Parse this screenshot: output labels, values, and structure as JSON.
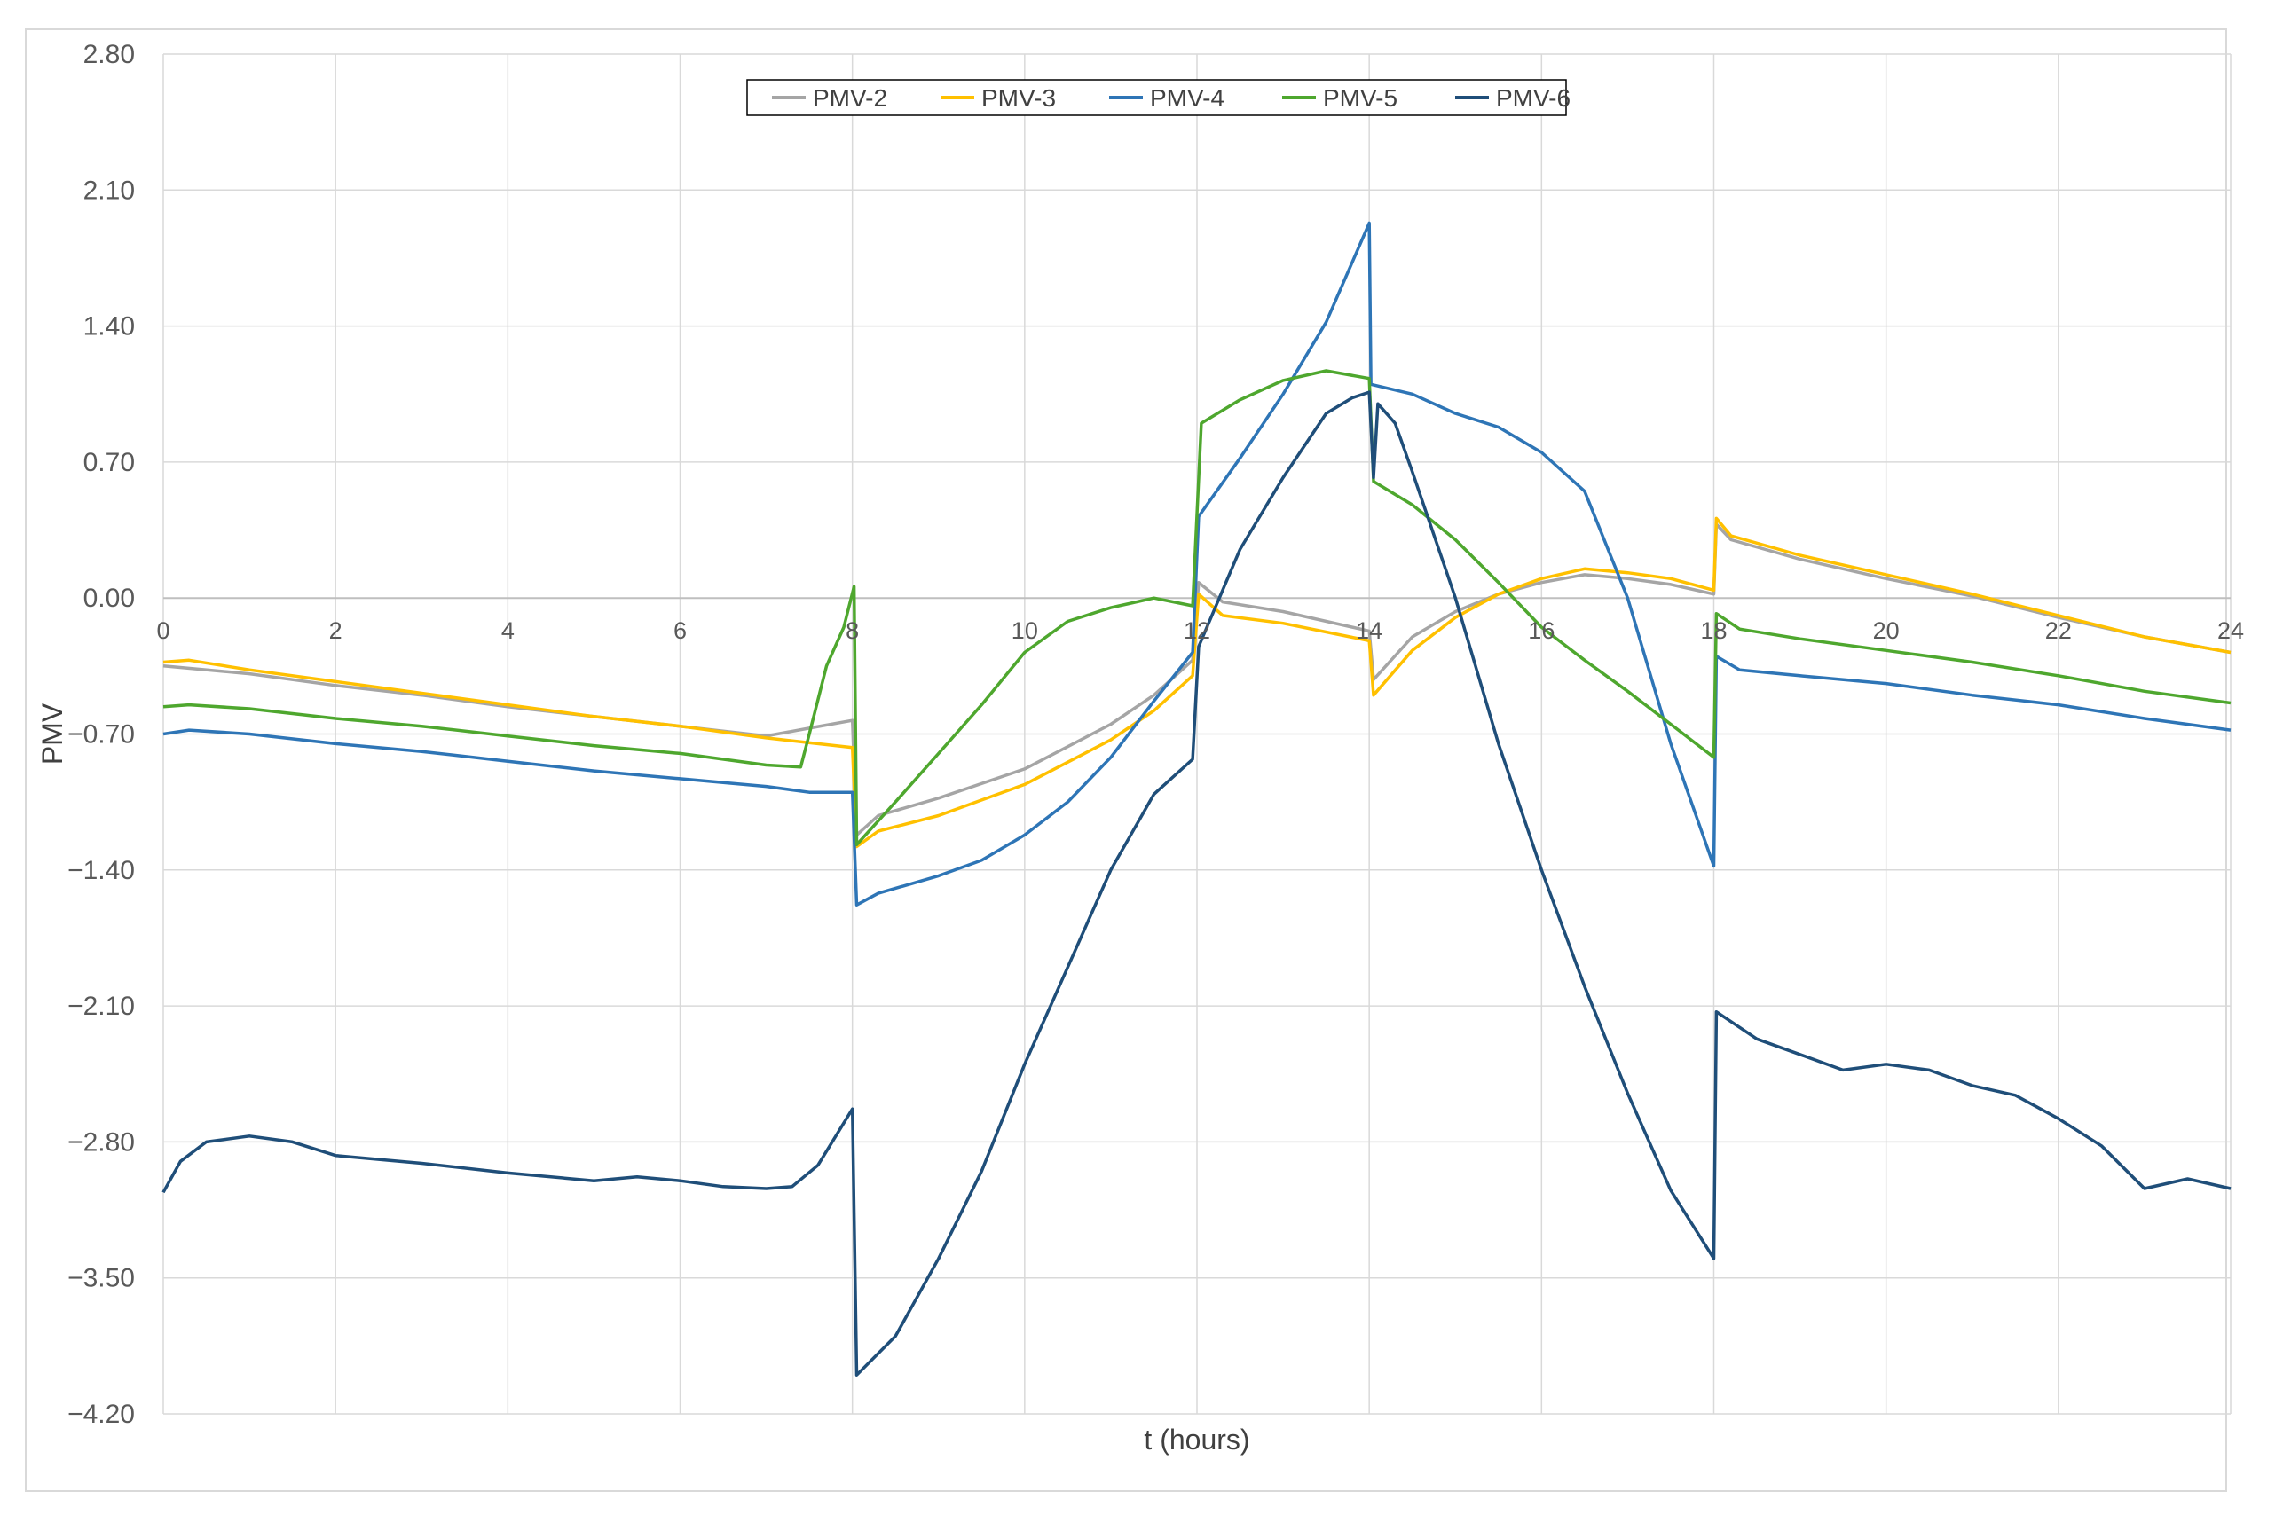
{
  "chart_data": {
    "type": "line",
    "title": "",
    "xlabel": "t (hours)",
    "ylabel": "PMV",
    "xlim": [
      0,
      24
    ],
    "ylim": [
      -4.2,
      2.8
    ],
    "x_ticks": [
      "0",
      "2",
      "4",
      "6",
      "8",
      "10",
      "12",
      "14",
      "16",
      "18",
      "20",
      "22",
      "24"
    ],
    "y_ticks": [
      "2.80",
      "2.10",
      "1.40",
      "0.70",
      "0.00",
      "-0.70",
      "-1.40",
      "-2.10",
      "-2.80",
      "-3.50",
      "-4.20"
    ],
    "grid": true,
    "legend_position": "top-center",
    "series": [
      {
        "name": "PMV-2",
        "color": "#a5a5a5",
        "points": [
          [
            0,
            -0.35
          ],
          [
            1,
            -0.39
          ],
          [
            2,
            -0.45
          ],
          [
            3,
            -0.5
          ],
          [
            4,
            -0.56
          ],
          [
            5,
            -0.61
          ],
          [
            6,
            -0.66
          ],
          [
            7,
            -0.71
          ],
          [
            7.5,
            -0.67
          ],
          [
            8,
            -0.63
          ],
          [
            8.05,
            -1.22
          ],
          [
            8.3,
            -1.12
          ],
          [
            9,
            -1.03
          ],
          [
            10,
            -0.88
          ],
          [
            11,
            -0.65
          ],
          [
            11.5,
            -0.5
          ],
          [
            11.95,
            -0.32
          ],
          [
            12.02,
            0.08
          ],
          [
            12.3,
            -0.02
          ],
          [
            13,
            -0.07
          ],
          [
            14,
            -0.17
          ],
          [
            14.05,
            -0.42
          ],
          [
            14.5,
            -0.2
          ],
          [
            15,
            -0.07
          ],
          [
            15.5,
            0.02
          ],
          [
            16,
            0.08
          ],
          [
            16.5,
            0.12
          ],
          [
            17,
            0.1
          ],
          [
            17.5,
            0.07
          ],
          [
            18,
            0.02
          ],
          [
            18.03,
            0.38
          ],
          [
            18.2,
            0.3
          ],
          [
            19,
            0.2
          ],
          [
            20,
            0.1
          ],
          [
            21,
            0.01
          ],
          [
            22,
            -0.1
          ],
          [
            23,
            -0.2
          ],
          [
            24,
            -0.28
          ]
        ]
      },
      {
        "name": "PMV-3",
        "color": "#ffc000",
        "points": [
          [
            0,
            -0.33
          ],
          [
            0.3,
            -0.32
          ],
          [
            1,
            -0.37
          ],
          [
            2,
            -0.43
          ],
          [
            3,
            -0.49
          ],
          [
            4,
            -0.55
          ],
          [
            5,
            -0.61
          ],
          [
            6,
            -0.66
          ],
          [
            7,
            -0.72
          ],
          [
            8,
            -0.77
          ],
          [
            8.05,
            -1.28
          ],
          [
            8.3,
            -1.2
          ],
          [
            9,
            -1.12
          ],
          [
            10,
            -0.96
          ],
          [
            11,
            -0.73
          ],
          [
            11.5,
            -0.58
          ],
          [
            11.95,
            -0.4
          ],
          [
            12.02,
            0.02
          ],
          [
            12.3,
            -0.09
          ],
          [
            13,
            -0.13
          ],
          [
            14,
            -0.22
          ],
          [
            14.05,
            -0.5
          ],
          [
            14.5,
            -0.27
          ],
          [
            15,
            -0.1
          ],
          [
            15.5,
            0.02
          ],
          [
            16,
            0.1
          ],
          [
            16.5,
            0.15
          ],
          [
            17,
            0.13
          ],
          [
            17.5,
            0.1
          ],
          [
            18,
            0.04
          ],
          [
            18.03,
            0.41
          ],
          [
            18.2,
            0.32
          ],
          [
            19,
            0.22
          ],
          [
            20,
            0.12
          ],
          [
            21,
            0.02
          ],
          [
            22,
            -0.09
          ],
          [
            23,
            -0.2
          ],
          [
            24,
            -0.28
          ]
        ]
      },
      {
        "name": "PMV-4",
        "color": "#2e75b6",
        "points": [
          [
            0,
            -0.7
          ],
          [
            0.3,
            -0.68
          ],
          [
            1,
            -0.7
          ],
          [
            2,
            -0.75
          ],
          [
            3,
            -0.79
          ],
          [
            4,
            -0.84
          ],
          [
            5,
            -0.89
          ],
          [
            6,
            -0.93
          ],
          [
            7,
            -0.97
          ],
          [
            7.5,
            -1.0
          ],
          [
            8,
            -1.0
          ],
          [
            8.05,
            -1.58
          ],
          [
            8.3,
            -1.52
          ],
          [
            9,
            -1.43
          ],
          [
            9.5,
            -1.35
          ],
          [
            10,
            -1.22
          ],
          [
            10.5,
            -1.05
          ],
          [
            11,
            -0.82
          ],
          [
            11.5,
            -0.53
          ],
          [
            11.95,
            -0.28
          ],
          [
            12.02,
            0.42
          ],
          [
            12.5,
            0.72
          ],
          [
            13,
            1.05
          ],
          [
            13.5,
            1.42
          ],
          [
            14,
            1.93
          ],
          [
            14.02,
            1.1
          ],
          [
            14.5,
            1.05
          ],
          [
            15,
            0.95
          ],
          [
            15.5,
            0.88
          ],
          [
            16,
            0.75
          ],
          [
            16.5,
            0.55
          ],
          [
            17,
            0.0
          ],
          [
            17.5,
            -0.75
          ],
          [
            18,
            -1.38
          ],
          [
            18.03,
            -0.3
          ],
          [
            18.3,
            -0.37
          ],
          [
            19,
            -0.4
          ],
          [
            20,
            -0.44
          ],
          [
            21,
            -0.5
          ],
          [
            22,
            -0.55
          ],
          [
            23,
            -0.62
          ],
          [
            24,
            -0.68
          ]
        ]
      },
      {
        "name": "PMV-5",
        "color": "#4ea72e",
        "points": [
          [
            0,
            -0.56
          ],
          [
            0.3,
            -0.55
          ],
          [
            1,
            -0.57
          ],
          [
            2,
            -0.62
          ],
          [
            3,
            -0.66
          ],
          [
            4,
            -0.71
          ],
          [
            5,
            -0.76
          ],
          [
            6,
            -0.8
          ],
          [
            7,
            -0.86
          ],
          [
            7.4,
            -0.87
          ],
          [
            7.5,
            -0.7
          ],
          [
            7.7,
            -0.35
          ],
          [
            7.9,
            -0.15
          ],
          [
            8.02,
            0.06
          ],
          [
            8.05,
            -1.27
          ],
          [
            8.5,
            -1.05
          ],
          [
            9,
            -0.8
          ],
          [
            9.5,
            -0.55
          ],
          [
            10,
            -0.28
          ],
          [
            10.5,
            -0.12
          ],
          [
            11,
            -0.05
          ],
          [
            11.5,
            0.0
          ],
          [
            11.95,
            -0.04
          ],
          [
            12.05,
            0.9
          ],
          [
            12.5,
            1.02
          ],
          [
            13,
            1.12
          ],
          [
            13.5,
            1.17
          ],
          [
            14,
            1.13
          ],
          [
            14.05,
            0.6
          ],
          [
            14.5,
            0.48
          ],
          [
            15,
            0.3
          ],
          [
            15.5,
            0.08
          ],
          [
            16,
            -0.15
          ],
          [
            16.5,
            -0.32
          ],
          [
            17,
            -0.48
          ],
          [
            17.5,
            -0.65
          ],
          [
            18,
            -0.82
          ],
          [
            18.03,
            -0.08
          ],
          [
            18.3,
            -0.16
          ],
          [
            19,
            -0.21
          ],
          [
            20,
            -0.27
          ],
          [
            21,
            -0.33
          ],
          [
            22,
            -0.4
          ],
          [
            23,
            -0.48
          ],
          [
            24,
            -0.54
          ]
        ]
      },
      {
        "name": "PMV-6",
        "color": "#1f4e79",
        "points": [
          [
            0,
            -3.06
          ],
          [
            0.2,
            -2.9
          ],
          [
            0.5,
            -2.8
          ],
          [
            1,
            -2.77
          ],
          [
            1.5,
            -2.8
          ],
          [
            2,
            -2.87
          ],
          [
            3,
            -2.91
          ],
          [
            4,
            -2.96
          ],
          [
            5,
            -3.0
          ],
          [
            5.5,
            -2.98
          ],
          [
            6,
            -3.0
          ],
          [
            6.5,
            -3.03
          ],
          [
            7,
            -3.04
          ],
          [
            7.3,
            -3.03
          ],
          [
            7.6,
            -2.92
          ],
          [
            8,
            -2.63
          ],
          [
            8.05,
            -4.0
          ],
          [
            8.5,
            -3.8
          ],
          [
            9,
            -3.4
          ],
          [
            9.5,
            -2.95
          ],
          [
            10,
            -2.4
          ],
          [
            10.5,
            -1.9
          ],
          [
            11,
            -1.4
          ],
          [
            11.5,
            -1.01
          ],
          [
            11.95,
            -0.83
          ],
          [
            12.02,
            -0.25
          ],
          [
            12.5,
            0.25
          ],
          [
            13,
            0.62
          ],
          [
            13.5,
            0.95
          ],
          [
            13.8,
            1.03
          ],
          [
            14,
            1.06
          ],
          [
            14.05,
            0.62
          ],
          [
            14.1,
            1.0
          ],
          [
            14.3,
            0.9
          ],
          [
            14.5,
            0.65
          ],
          [
            15,
            0.0
          ],
          [
            15.5,
            -0.75
          ],
          [
            16,
            -1.4
          ],
          [
            16.5,
            -2.0
          ],
          [
            17,
            -2.55
          ],
          [
            17.5,
            -3.05
          ],
          [
            18,
            -3.4
          ],
          [
            18.03,
            -2.13
          ],
          [
            18.5,
            -2.27
          ],
          [
            19,
            -2.35
          ],
          [
            19.5,
            -2.43
          ],
          [
            20,
            -2.4
          ],
          [
            20.5,
            -2.43
          ],
          [
            21,
            -2.51
          ],
          [
            21.5,
            -2.56
          ],
          [
            22,
            -2.68
          ],
          [
            22.5,
            -2.82
          ],
          [
            23,
            -3.04
          ],
          [
            23.5,
            -2.99
          ],
          [
            24,
            -3.04
          ]
        ]
      }
    ]
  }
}
